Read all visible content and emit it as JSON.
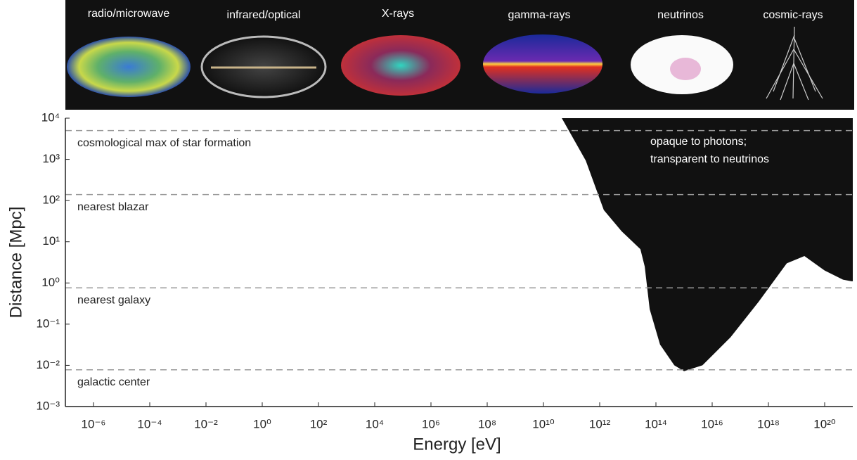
{
  "chart_data": {
    "type": "area",
    "messengers": [
      "radio/microwave",
      "infrared/optical",
      "X-rays",
      "gamma-rays",
      "neutrinos",
      "cosmic-rays"
    ],
    "x_label": "Energy [eV]",
    "y_label": "Distance [Mpc]",
    "log_x": true,
    "log_y": true,
    "xlim": [
      1e-07,
      1e+21
    ],
    "ylim": [
      0.001,
      10000
    ],
    "xticks": [
      {
        "value": 1e-06,
        "label": "10⁻⁶"
      },
      {
        "value": 0.0001,
        "label": "10⁻⁴"
      },
      {
        "value": 0.01,
        "label": "10⁻²"
      },
      {
        "value": 1,
        "label": "10⁰"
      },
      {
        "value": 100,
        "label": "10²"
      },
      {
        "value": 10000,
        "label": "10⁴"
      },
      {
        "value": 1000000,
        "label": "10⁶"
      },
      {
        "value": 100000000,
        "label": "10⁸"
      },
      {
        "value": 10000000000,
        "label": "10¹⁰"
      },
      {
        "value": 1000000000000.0,
        "label": "10¹²"
      },
      {
        "value": 100000000000000.0,
        "label": "10¹⁴"
      },
      {
        "value": 1e+16,
        "label": "10¹⁶"
      },
      {
        "value": 1e+18,
        "label": "10¹⁸"
      },
      {
        "value": 1e+20,
        "label": "10²⁰"
      }
    ],
    "yticks": [
      {
        "value": 0.001,
        "label": "10⁻³"
      },
      {
        "value": 0.01,
        "label": "10⁻²"
      },
      {
        "value": 0.1,
        "label": "10⁻¹"
      },
      {
        "value": 1,
        "label": "10⁰"
      },
      {
        "value": 10,
        "label": "10¹"
      },
      {
        "value": 100,
        "label": "10²"
      },
      {
        "value": 1000,
        "label": "10³"
      },
      {
        "value": 10000,
        "label": "10⁴"
      }
    ],
    "reference_lines": [
      {
        "label": "cosmological max of star formation",
        "value": 5000
      },
      {
        "label": "nearest blazar",
        "value": 140
      },
      {
        "label": "nearest galaxy",
        "value": 0.76
      },
      {
        "label": "galactic center",
        "value": 0.0078
      }
    ],
    "series": [
      {
        "color": "#111111",
        "x": [
          45000000000.0,
          320000000000.0,
          1400000000000.0,
          6000000000000.0,
          28000000000000.0,
          40000000000000.0,
          60000000000000.0,
          140000000000000.0,
          450000000000000.0,
          1000000000000000.0,
          4500000000000000.0,
          4.5e+16,
          4.5e+17,
          4.5e+18,
          1.9e+19,
          1e+20,
          4.5e+20,
          9e+20
        ],
        "values": [
          10000,
          930,
          59,
          18,
          6.6,
          2.5,
          0.23,
          0.032,
          0.01,
          0.0072,
          0.01,
          0.048,
          0.35,
          3,
          4.5,
          2,
          1.2,
          1.1
        ]
      }
    ],
    "annotations": [
      "opaque to photons;",
      "transparent to neutrinos"
    ]
  }
}
